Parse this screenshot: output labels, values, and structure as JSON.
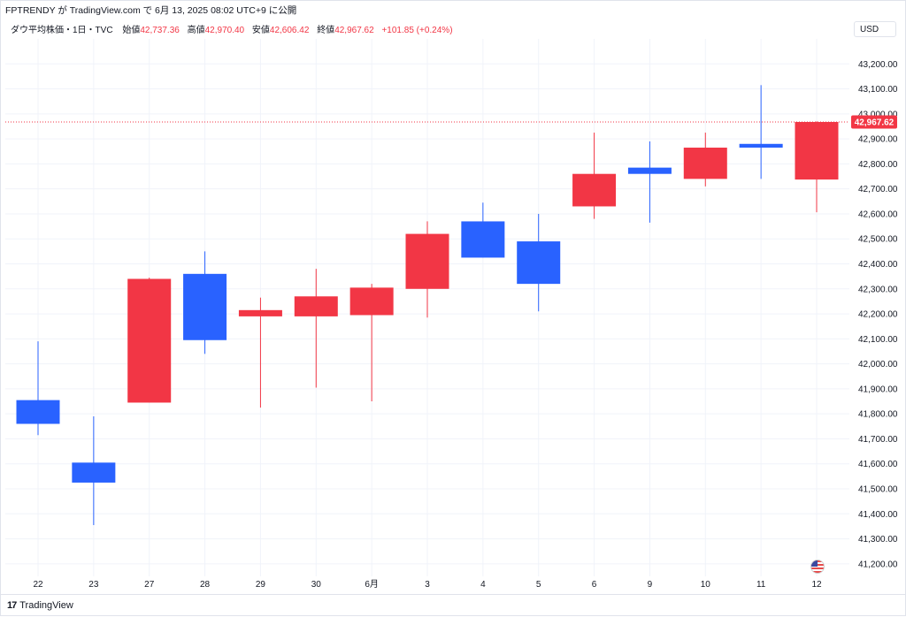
{
  "header": {
    "caption": "FPTRENDY が TradingView.com で 6月 13, 2025 08:02 UTC+9 に公開",
    "symbol": "ダウ平均株価・1日・TVC",
    "open_label": "始値",
    "open_value": "42,737.36",
    "high_label": "高値",
    "high_value": "42,970.40",
    "low_label": "安値",
    "low_value": "42,606.42",
    "close_label": "終値",
    "close_value": "42,967.62",
    "change": "+101.85 (+0.24%)",
    "currency": "USD"
  },
  "footer": {
    "brand": "TradingView",
    "brand_mark": "17"
  },
  "colors": {
    "up": "#f23645",
    "down": "#2962ff",
    "grid": "#f0f3fa",
    "price_line": "#f23645"
  },
  "icons": {
    "flag": "us-flag-icon"
  },
  "chart_data": {
    "type": "candlestick",
    "up_color": "#f23645",
    "down_color": "#2962ff",
    "ylim": [
      41150,
      43300
    ],
    "y_ticks": [
      41200,
      41300,
      41400,
      41500,
      41600,
      41700,
      41800,
      41900,
      42000,
      42100,
      42200,
      42300,
      42400,
      42500,
      42600,
      42700,
      42800,
      42900,
      43000,
      43100,
      43200
    ],
    "y_tick_labels": [
      "41,200.00",
      "41,300.00",
      "41,400.00",
      "41,500.00",
      "41,600.00",
      "41,700.00",
      "41,800.00",
      "41,900.00",
      "42,000.00",
      "42,100.00",
      "42,200.00",
      "42,300.00",
      "42,400.00",
      "42,500.00",
      "42,600.00",
      "42,700.00",
      "42,800.00",
      "42,900.00",
      "43,000.00",
      "43,100.00",
      "43,200.00"
    ],
    "last_price": 42967.62,
    "last_price_label": "42,967.62",
    "candles": [
      {
        "label": "22",
        "open": 41855,
        "high": 42090,
        "low": 41715,
        "close": 41760
      },
      {
        "label": "23",
        "open": 41605,
        "high": 41790,
        "low": 41355,
        "close": 41525
      },
      {
        "label": "27",
        "open": 41845,
        "high": 42345,
        "low": 41845,
        "close": 42340
      },
      {
        "label": "28",
        "open": 42360,
        "high": 42450,
        "low": 42040,
        "close": 42095
      },
      {
        "label": "29",
        "open": 42190,
        "high": 42265,
        "low": 41825,
        "close": 42215
      },
      {
        "label": "30",
        "open": 42190,
        "high": 42380,
        "low": 41905,
        "close": 42270
      },
      {
        "label": "6月",
        "open": 42195,
        "high": 42320,
        "low": 41850,
        "close": 42305
      },
      {
        "label": "3",
        "open": 42300,
        "high": 42570,
        "low": 42185,
        "close": 42520
      },
      {
        "label": "4",
        "open": 42570,
        "high": 42645,
        "low": 42425,
        "close": 42425
      },
      {
        "label": "5",
        "open": 42490,
        "high": 42600,
        "low": 42210,
        "close": 42320
      },
      {
        "label": "6",
        "open": 42630,
        "high": 42925,
        "low": 42580,
        "close": 42760
      },
      {
        "label": "9",
        "open": 42785,
        "high": 42890,
        "low": 42565,
        "close": 42760
      },
      {
        "label": "10",
        "open": 42740,
        "high": 42925,
        "low": 42710,
        "close": 42865
      },
      {
        "label": "11",
        "open": 42880,
        "high": 43115,
        "low": 42740,
        "close": 42865
      },
      {
        "label": "12",
        "open": 42737.36,
        "high": 42970.4,
        "low": 42606.42,
        "close": 42967.62
      }
    ]
  }
}
